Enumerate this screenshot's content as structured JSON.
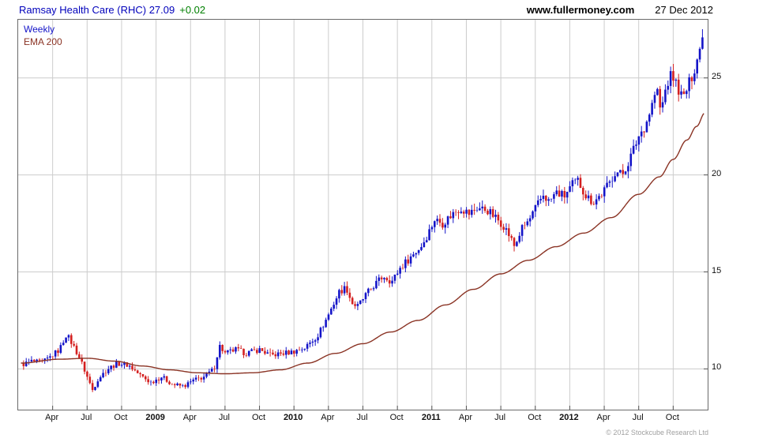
{
  "header": {
    "title": "Ramsay Health Care (RHC) 27.09",
    "change": "+0.02",
    "site": "www.fullermoney.com",
    "date": "27 Dec 2012"
  },
  "legend": {
    "series": "Weekly",
    "ema": "EMA 200"
  },
  "footer": {
    "copyright": "© 2012 Stockcube Research Ltd"
  },
  "chart_data": {
    "type": "candlestick",
    "title": "Ramsay Health Care (RHC) weekly candles with 200-period EMA",
    "xlabel": "",
    "ylabel": "",
    "x_range": [
      2008.0,
      2013.0
    ],
    "ylim": [
      7.9,
      28.0
    ],
    "yticks": [
      10,
      15,
      20,
      25
    ],
    "grid": true,
    "legend_position": "top-left",
    "last_price": 27.09,
    "colors": {
      "up": "#1414c8",
      "down": "#d42020",
      "ema": "#8a3324",
      "grid": "#cccccc",
      "border": "#6a6a6a",
      "tick": "#555555"
    },
    "xticks": [
      {
        "t": 2008.25,
        "label": "Apr",
        "year": false
      },
      {
        "t": 2008.5,
        "label": "Jul",
        "year": false
      },
      {
        "t": 2008.75,
        "label": "Oct",
        "year": false
      },
      {
        "t": 2009.0,
        "label": "2009",
        "year": true
      },
      {
        "t": 2009.25,
        "label": "Apr",
        "year": false
      },
      {
        "t": 2009.5,
        "label": "Jul",
        "year": false
      },
      {
        "t": 2009.75,
        "label": "Oct",
        "year": false
      },
      {
        "t": 2010.0,
        "label": "2010",
        "year": true
      },
      {
        "t": 2010.25,
        "label": "Apr",
        "year": false
      },
      {
        "t": 2010.5,
        "label": "Jul",
        "year": false
      },
      {
        "t": 2010.75,
        "label": "Oct",
        "year": false
      },
      {
        "t": 2011.0,
        "label": "2011",
        "year": true
      },
      {
        "t": 2011.25,
        "label": "Apr",
        "year": false
      },
      {
        "t": 2011.5,
        "label": "Jul",
        "year": false
      },
      {
        "t": 2011.75,
        "label": "Oct",
        "year": false
      },
      {
        "t": 2012.0,
        "label": "2012",
        "year": true
      },
      {
        "t": 2012.25,
        "label": "Apr",
        "year": false
      },
      {
        "t": 2012.5,
        "label": "Jul",
        "year": false
      },
      {
        "t": 2012.75,
        "label": "Oct",
        "year": false
      }
    ],
    "price_keypoints": [
      {
        "t": 2008.02,
        "p": 10.2
      },
      {
        "t": 2008.1,
        "p": 10.4
      },
      {
        "t": 2008.17,
        "p": 10.3
      },
      {
        "t": 2008.23,
        "p": 10.6
      },
      {
        "t": 2008.3,
        "p": 11.0
      },
      {
        "t": 2008.35,
        "p": 11.8
      },
      {
        "t": 2008.4,
        "p": 11.2
      },
      {
        "t": 2008.45,
        "p": 10.5
      },
      {
        "t": 2008.5,
        "p": 9.6
      },
      {
        "t": 2008.54,
        "p": 8.9
      },
      {
        "t": 2008.58,
        "p": 9.5
      },
      {
        "t": 2008.65,
        "p": 10.0
      },
      {
        "t": 2008.72,
        "p": 10.3
      },
      {
        "t": 2008.8,
        "p": 10.2
      },
      {
        "t": 2008.88,
        "p": 9.7
      },
      {
        "t": 2008.96,
        "p": 9.3
      },
      {
        "t": 2009.04,
        "p": 9.6
      },
      {
        "t": 2009.12,
        "p": 9.2
      },
      {
        "t": 2009.2,
        "p": 9.1
      },
      {
        "t": 2009.27,
        "p": 9.4
      },
      {
        "t": 2009.35,
        "p": 9.6
      },
      {
        "t": 2009.42,
        "p": 10.0
      },
      {
        "t": 2009.46,
        "p": 11.2
      },
      {
        "t": 2009.5,
        "p": 10.8
      },
      {
        "t": 2009.58,
        "p": 11.0
      },
      {
        "t": 2009.65,
        "p": 10.8
      },
      {
        "t": 2009.75,
        "p": 11.0
      },
      {
        "t": 2009.83,
        "p": 10.7
      },
      {
        "t": 2009.92,
        "p": 10.8
      },
      {
        "t": 2010.0,
        "p": 10.9
      },
      {
        "t": 2010.08,
        "p": 11.1
      },
      {
        "t": 2010.17,
        "p": 11.7
      },
      {
        "t": 2010.23,
        "p": 12.5
      },
      {
        "t": 2010.29,
        "p": 13.4
      },
      {
        "t": 2010.33,
        "p": 14.0
      },
      {
        "t": 2010.38,
        "p": 14.2
      },
      {
        "t": 2010.42,
        "p": 13.4
      },
      {
        "t": 2010.46,
        "p": 13.2
      },
      {
        "t": 2010.52,
        "p": 13.8
      },
      {
        "t": 2010.58,
        "p": 14.3
      },
      {
        "t": 2010.65,
        "p": 14.8
      },
      {
        "t": 2010.71,
        "p": 14.5
      },
      {
        "t": 2010.77,
        "p": 15.2
      },
      {
        "t": 2010.85,
        "p": 15.8
      },
      {
        "t": 2010.92,
        "p": 16.3
      },
      {
        "t": 2010.96,
        "p": 16.8
      },
      {
        "t": 2011.02,
        "p": 17.7
      },
      {
        "t": 2011.08,
        "p": 17.5
      },
      {
        "t": 2011.15,
        "p": 18.0
      },
      {
        "t": 2011.21,
        "p": 18.3
      },
      {
        "t": 2011.27,
        "p": 18.0
      },
      {
        "t": 2011.33,
        "p": 18.3
      },
      {
        "t": 2011.4,
        "p": 18.2
      },
      {
        "t": 2011.46,
        "p": 17.8
      },
      {
        "t": 2011.52,
        "p": 17.4
      },
      {
        "t": 2011.56,
        "p": 16.9
      },
      {
        "t": 2011.6,
        "p": 16.3
      },
      {
        "t": 2011.65,
        "p": 17.2
      },
      {
        "t": 2011.71,
        "p": 17.7
      },
      {
        "t": 2011.77,
        "p": 18.5
      },
      {
        "t": 2011.81,
        "p": 19.0
      },
      {
        "t": 2011.85,
        "p": 18.6
      },
      {
        "t": 2011.9,
        "p": 19.1
      },
      {
        "t": 2011.96,
        "p": 18.9
      },
      {
        "t": 2012.02,
        "p": 19.5
      },
      {
        "t": 2012.06,
        "p": 19.7
      },
      {
        "t": 2012.12,
        "p": 18.9
      },
      {
        "t": 2012.17,
        "p": 18.6
      },
      {
        "t": 2012.23,
        "p": 19.0
      },
      {
        "t": 2012.29,
        "p": 19.6
      },
      {
        "t": 2012.33,
        "p": 20.2
      },
      {
        "t": 2012.38,
        "p": 20.0
      },
      {
        "t": 2012.44,
        "p": 20.9
      },
      {
        "t": 2012.5,
        "p": 22.0
      },
      {
        "t": 2012.55,
        "p": 22.6
      },
      {
        "t": 2012.6,
        "p": 23.7
      },
      {
        "t": 2012.63,
        "p": 24.5
      },
      {
        "t": 2012.66,
        "p": 23.2
      },
      {
        "t": 2012.7,
        "p": 24.6
      },
      {
        "t": 2012.74,
        "p": 25.2
      },
      {
        "t": 2012.79,
        "p": 24.4
      },
      {
        "t": 2012.82,
        "p": 23.9
      },
      {
        "t": 2012.86,
        "p": 24.6
      },
      {
        "t": 2012.9,
        "p": 25.4
      },
      {
        "t": 2012.94,
        "p": 26.4
      },
      {
        "t": 2012.98,
        "p": 27.09
      }
    ],
    "ema_keypoints": [
      {
        "t": 2008.02,
        "v": 10.3
      },
      {
        "t": 2008.3,
        "v": 10.5
      },
      {
        "t": 2008.5,
        "v": 10.55
      },
      {
        "t": 2008.7,
        "v": 10.4
      },
      {
        "t": 2008.9,
        "v": 10.15
      },
      {
        "t": 2009.1,
        "v": 9.95
      },
      {
        "t": 2009.3,
        "v": 9.8
      },
      {
        "t": 2009.5,
        "v": 9.75
      },
      {
        "t": 2009.7,
        "v": 9.8
      },
      {
        "t": 2009.9,
        "v": 9.95
      },
      {
        "t": 2010.1,
        "v": 10.3
      },
      {
        "t": 2010.3,
        "v": 10.8
      },
      {
        "t": 2010.5,
        "v": 11.3
      },
      {
        "t": 2010.7,
        "v": 11.9
      },
      {
        "t": 2010.9,
        "v": 12.5
      },
      {
        "t": 2011.1,
        "v": 13.3
      },
      {
        "t": 2011.3,
        "v": 14.1
      },
      {
        "t": 2011.5,
        "v": 14.9
      },
      {
        "t": 2011.7,
        "v": 15.6
      },
      {
        "t": 2011.9,
        "v": 16.3
      },
      {
        "t": 2012.1,
        "v": 17.0
      },
      {
        "t": 2012.3,
        "v": 17.8
      },
      {
        "t": 2012.5,
        "v": 19.0
      },
      {
        "t": 2012.65,
        "v": 19.9
      },
      {
        "t": 2012.75,
        "v": 20.8
      },
      {
        "t": 2012.85,
        "v": 21.8
      },
      {
        "t": 2012.92,
        "v": 22.5
      },
      {
        "t": 2012.98,
        "v": 23.2
      }
    ]
  }
}
